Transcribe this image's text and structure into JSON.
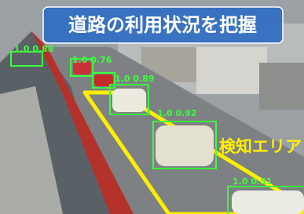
{
  "title": "道路の利用状況を把握",
  "area_label": "検知エリア",
  "detections": [
    {
      "label": "1.0 0.88"
    },
    {
      "label": "1.0 0.76"
    },
    {
      "label": "1.0 0.89"
    },
    {
      "label": "1.0 0.92"
    },
    {
      "label": "1.0 0.51"
    }
  ]
}
